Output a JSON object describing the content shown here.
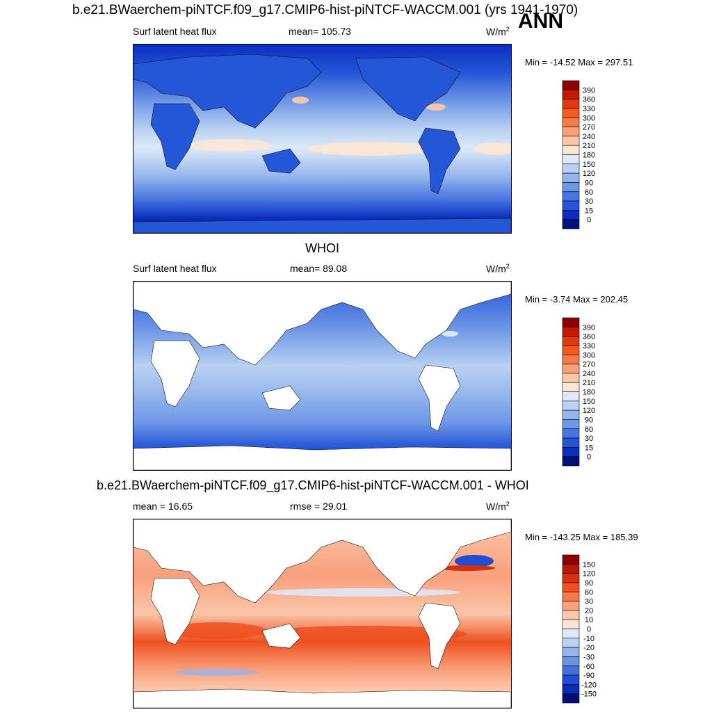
{
  "title": "b.e21.BWaerchem-piNTCF.f09_g17.CMIP6-hist-piNTCF-WACCM.001 (yrs 1941-1970)",
  "season": "ANN",
  "panels": [
    {
      "subtitle": "",
      "left_label": "Surf latent heat flux",
      "center_label": "mean= 105.73",
      "units": "W/m",
      "units_sup": "2",
      "minmax": "Min = -14.52 Max = 297.51"
    },
    {
      "subtitle": "WHOI",
      "left_label": "Surf latent heat flux",
      "center_label": "mean=  89.08",
      "units": "W/m",
      "units_sup": "2",
      "minmax": "Min =  -3.74 Max = 202.45"
    },
    {
      "subtitle": "b.e21.BWaerchem-piNTCF.f09_g17.CMIP6-hist-piNTCF-WACCM.001 - WHOI",
      "left_label": "mean =  16.65",
      "center_label": "rmse =  29.01",
      "units": "W/m",
      "units_sup": "2",
      "minmax": "Min = -143.25 Max = 185.39"
    }
  ],
  "chart_data": [
    {
      "type": "heatmap",
      "title": "Surf latent heat flux",
      "units": "W/m^2",
      "mean": 105.73,
      "min": -14.52,
      "max": 297.51,
      "colorbar": {
        "labels": [
          "390",
          "360",
          "330",
          "300",
          "270",
          "240",
          "210",
          "180",
          "150",
          "120",
          "90",
          "60",
          "30",
          "15",
          "0"
        ],
        "colors": [
          "#8b0000",
          "#c41a00",
          "#e03a0c",
          "#f25a20",
          "#f57a45",
          "#f7a07a",
          "#f9c7a8",
          "#fce6d2",
          "#dde9f8",
          "#b9d1f2",
          "#95b6ec",
          "#6d96e6",
          "#4876e0",
          "#2456d8",
          "#0a2fc0",
          "#00117a"
        ]
      }
    },
    {
      "type": "heatmap",
      "title": "WHOI",
      "units": "W/m^2",
      "mean": 89.08,
      "min": -3.74,
      "max": 202.45,
      "colorbar": {
        "labels": [
          "390",
          "360",
          "330",
          "300",
          "270",
          "240",
          "210",
          "180",
          "150",
          "120",
          "90",
          "60",
          "30",
          "15",
          "0"
        ],
        "colors": [
          "#8b0000",
          "#c41a00",
          "#e03a0c",
          "#f25a20",
          "#f57a45",
          "#f7a07a",
          "#f9c7a8",
          "#fce6d2",
          "#dde9f8",
          "#b9d1f2",
          "#95b6ec",
          "#6d96e6",
          "#4876e0",
          "#2456d8",
          "#0a2fc0",
          "#00117a"
        ]
      }
    },
    {
      "type": "heatmap",
      "title": "b.e21.BWaerchem-piNTCF.f09_g17.CMIP6-hist-piNTCF-WACCM.001 - WHOI",
      "units": "W/m^2",
      "mean": 16.65,
      "rmse": 29.01,
      "min": -143.25,
      "max": 185.39,
      "colorbar": {
        "labels": [
          "150",
          "120",
          "90",
          "60",
          "30",
          "20",
          "10",
          "0",
          "-10",
          "-20",
          "-30",
          "-60",
          "-90",
          "-120",
          "-150"
        ],
        "colors": [
          "#8b0000",
          "#b81800",
          "#d8300c",
          "#ee5020",
          "#f6784a",
          "#f9a07c",
          "#fbc6aa",
          "#fde3d3",
          "#dde8f8",
          "#bcd0f2",
          "#95b4ec",
          "#6c92e4",
          "#4470dc",
          "#1f4ed4",
          "#0a2cba",
          "#001078"
        ]
      }
    }
  ]
}
